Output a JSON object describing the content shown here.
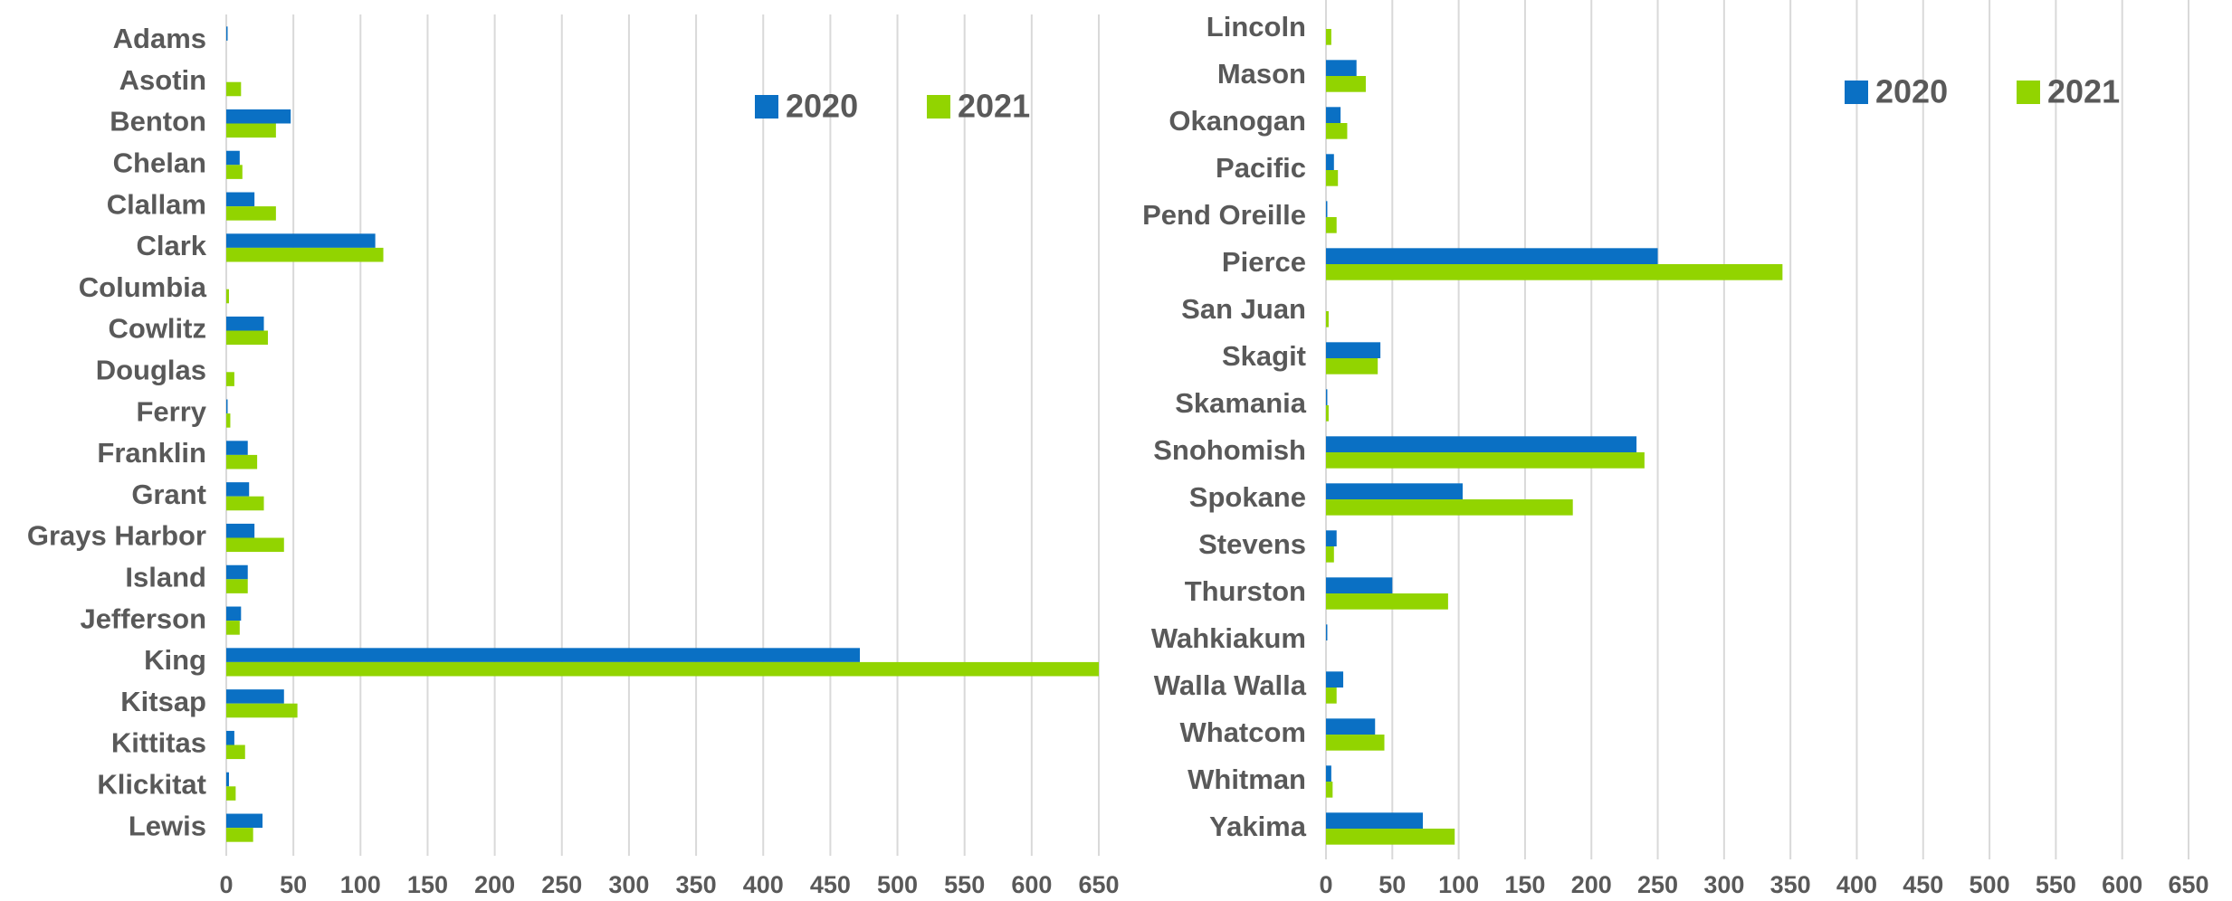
{
  "chart_data": [
    {
      "type": "bar",
      "orientation": "horizontal",
      "categories": [
        "Adams",
        "Asotin",
        "Benton",
        "Chelan",
        "Clallam",
        "Clark",
        "Columbia",
        "Cowlitz",
        "Douglas",
        "Ferry",
        "Franklin",
        "Grant",
        "Grays Harbor",
        "Island",
        "Jefferson",
        "King",
        "Kitsap",
        "Kittitas",
        "Klickitat",
        "Lewis"
      ],
      "series": [
        {
          "name": "2020",
          "color": "#0a70c4",
          "values": [
            1,
            0,
            48,
            10,
            21,
            111,
            0,
            28,
            0,
            1,
            16,
            17,
            21,
            16,
            11,
            472,
            43,
            6,
            2,
            27
          ]
        },
        {
          "name": "2021",
          "color": "#92d400",
          "values": [
            0,
            11,
            37,
            12,
            37,
            117,
            2,
            31,
            6,
            3,
            23,
            28,
            43,
            16,
            10,
            650,
            53,
            14,
            7,
            20
          ]
        }
      ],
      "xlim": [
        0,
        650
      ],
      "xticks": [
        0,
        50,
        100,
        150,
        200,
        250,
        300,
        350,
        400,
        450,
        500,
        550,
        600,
        650
      ],
      "grid": true,
      "legend": "upper right"
    },
    {
      "type": "bar",
      "orientation": "horizontal",
      "categories": [
        "Lincoln",
        "Mason",
        "Okanogan",
        "Pacific",
        "Pend Oreille",
        "Pierce",
        "San Juan",
        "Skagit",
        "Skamania",
        "Snohomish",
        "Spokane",
        "Stevens",
        "Thurston",
        "Wahkiakum",
        "Walla Walla",
        "Whatcom",
        "Whitman",
        "Yakima"
      ],
      "series": [
        {
          "name": "2020",
          "color": "#0a70c4",
          "values": [
            0,
            23,
            11,
            6,
            1,
            250,
            0,
            41,
            1,
            234,
            103,
            8,
            50,
            1,
            13,
            37,
            4,
            73
          ]
        },
        {
          "name": "2021",
          "color": "#92d400",
          "values": [
            4,
            30,
            16,
            9,
            8,
            344,
            2,
            39,
            2,
            240,
            186,
            6,
            92,
            0,
            8,
            44,
            5,
            97
          ]
        }
      ],
      "xlim": [
        0,
        650
      ],
      "xticks": [
        0,
        50,
        100,
        150,
        200,
        250,
        300,
        350,
        400,
        450,
        500,
        550,
        600,
        650
      ],
      "grid": true,
      "legend": "upper right"
    }
  ]
}
